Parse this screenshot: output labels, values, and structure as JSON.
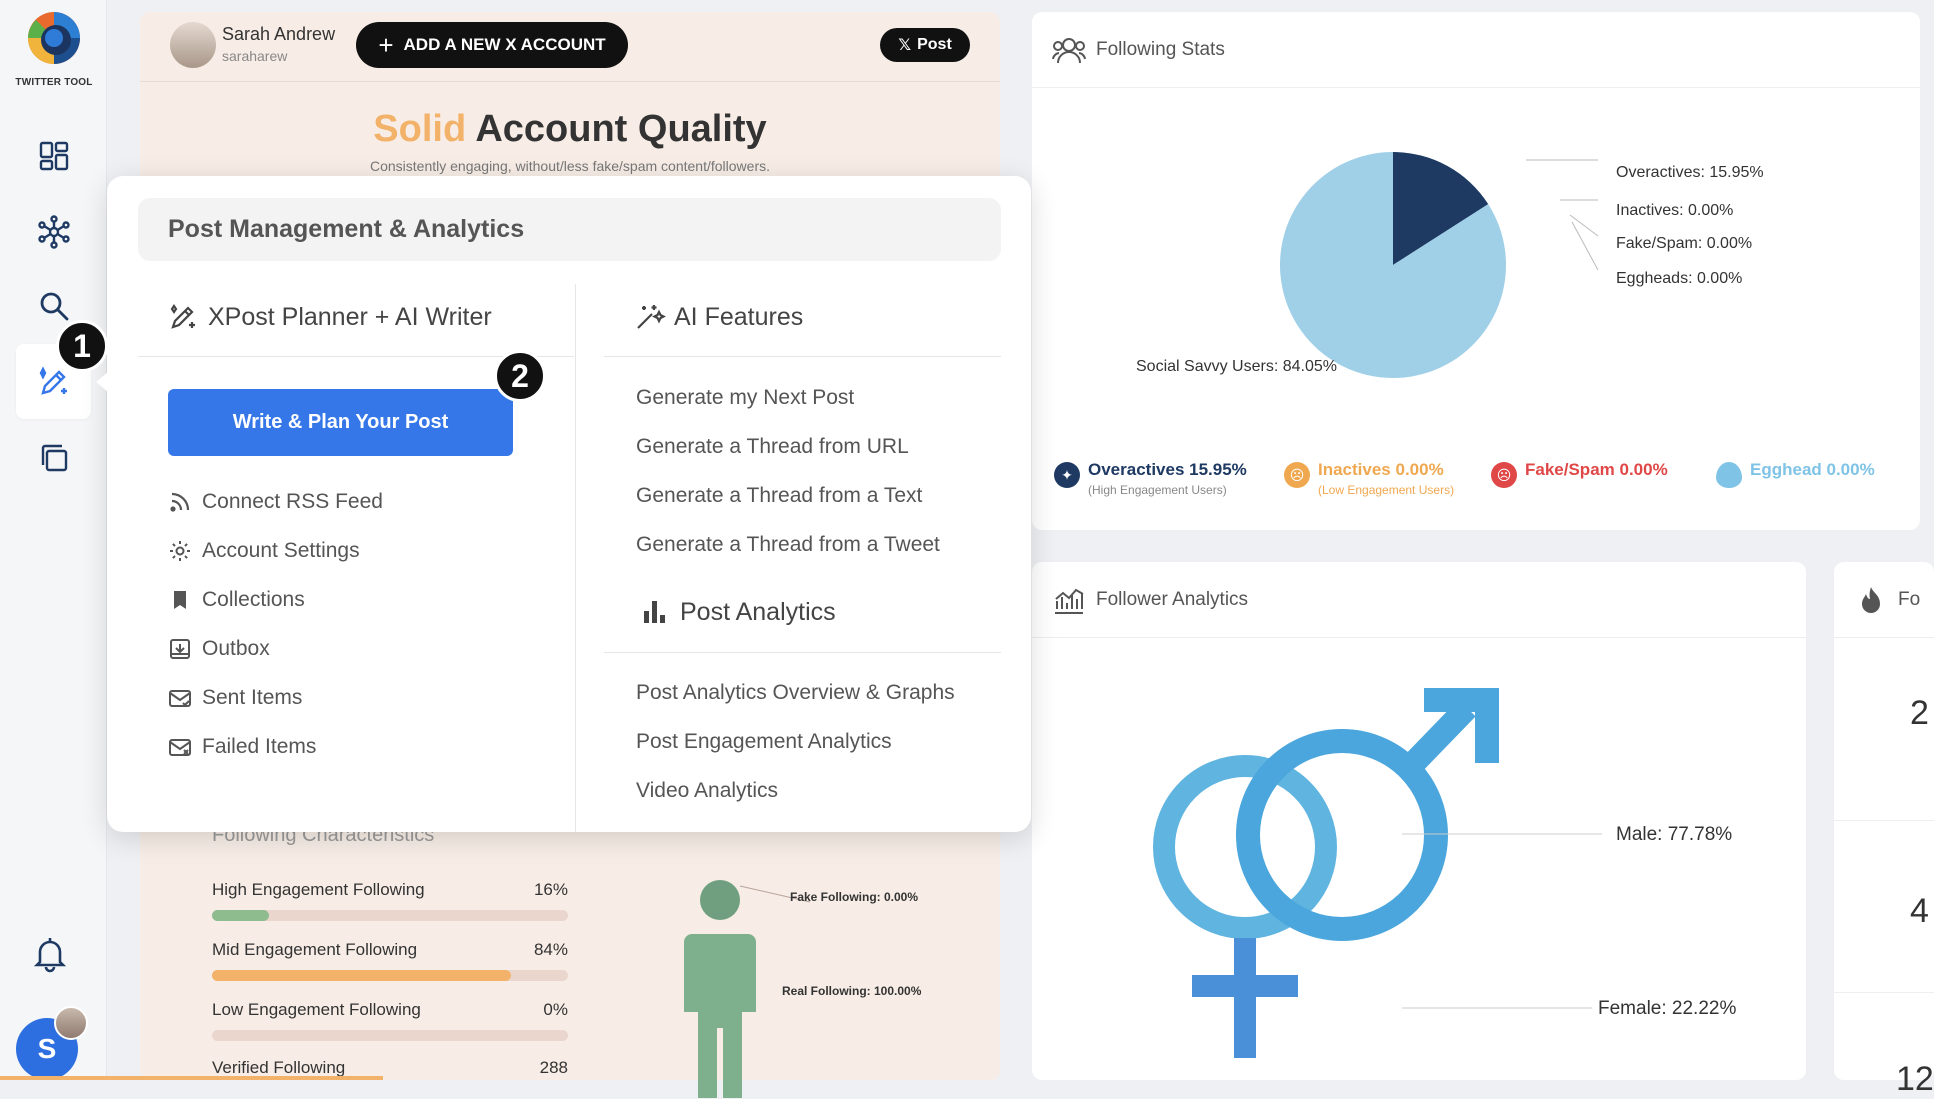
{
  "app": {
    "logo_text": "TWITTER TOOL"
  },
  "sidebar": {
    "items": [
      {
        "name": "dashboard"
      },
      {
        "name": "network"
      },
      {
        "name": "search"
      },
      {
        "name": "post-planner"
      },
      {
        "name": "collections"
      }
    ],
    "badges": {
      "step1": "1",
      "step2": "2"
    },
    "user_initial": "S"
  },
  "account": {
    "name": "Sarah Andrew",
    "handle": "saraharew",
    "add_account_label": "ADD A NEW X ACCOUNT",
    "post_label": "Post",
    "x_glyph": "𝕏"
  },
  "quality": {
    "title_accent": "Solid",
    "title_main": "Account Quality",
    "subtitle": "Consistently engaging, without/less fake/spam content/followers."
  },
  "following_characteristics": {
    "title": "Following Characteristics",
    "rows": [
      {
        "label": "High Engagement Following",
        "value": "16%",
        "fill": 16,
        "color": "#8fbc8f"
      },
      {
        "label": "Mid Engagement Following",
        "value": "84%",
        "fill": 84,
        "color": "#f2b26a"
      },
      {
        "label": "Low Engagement Following",
        "value": "0%",
        "fill": 0,
        "color": "#e0a0a0"
      },
      {
        "label": "Verified Following",
        "value": "288",
        "fill": 0,
        "color": "#999999"
      }
    ],
    "fake_label": "Fake Following: 0.00%",
    "real_label": "Real Following: 100.00%"
  },
  "menu": {
    "header": "Post Management & Analytics",
    "planner": {
      "title": "XPost Planner + AI Writer",
      "cta": "Write & Plan Your Post",
      "links": [
        {
          "label": "Connect RSS Feed",
          "icon": "rss-icon"
        },
        {
          "label": "Account Settings",
          "icon": "gear-icon"
        },
        {
          "label": "Collections",
          "icon": "bookmark-icon"
        },
        {
          "label": "Outbox",
          "icon": "outbox-icon"
        },
        {
          "label": "Sent Items",
          "icon": "sent-icon"
        },
        {
          "label": "Failed Items",
          "icon": "failed-icon"
        }
      ]
    },
    "ai": {
      "title": "AI Features",
      "links": [
        "Generate my Next Post",
        "Generate a Thread from URL",
        "Generate a Thread from a Text",
        "Generate a Thread from a Tweet"
      ]
    },
    "analytics": {
      "title": "Post Analytics",
      "links": [
        "Post Analytics Overview & Graphs",
        "Post Engagement Analytics",
        "Video Analytics"
      ]
    }
  },
  "following_stats": {
    "title": "Following Stats",
    "labels": {
      "overactives": "Overactives: 15.95%",
      "inactives": "Inactives: 0.00%",
      "fake": "Fake/Spam: 0.00%",
      "eggheads": "Eggheads: 0.00%",
      "social": "Social Savvy Users: 84.05%"
    },
    "legend": [
      {
        "label": "Overactives 15.95%",
        "sub": "(High Engagement Users)",
        "color": "#1e3a63"
      },
      {
        "label": "Inactives 0.00%",
        "sub": "(Low Engagement Users)",
        "color": "#f0a850"
      },
      {
        "label": "Fake/Spam 0.00%",
        "sub": "",
        "color": "#e04848"
      },
      {
        "label": "Egghead 0.00%",
        "sub": "",
        "color": "#7fc3e6"
      }
    ]
  },
  "chart_data": {
    "type": "pie",
    "title": "Following Stats",
    "categories": [
      "Overactives",
      "Inactives",
      "Fake/Spam",
      "Eggheads",
      "Social Savvy Users"
    ],
    "values": [
      15.95,
      0.0,
      0.0,
      0.0,
      84.05
    ],
    "colors": [
      "#1e3a63",
      "#f0a850",
      "#e04848",
      "#7fc3e6",
      "#9fd0e8"
    ]
  },
  "follower_analytics": {
    "title": "Follower Analytics",
    "male": "Male: 77.78%",
    "female": "Female: 22.22%"
  },
  "partial_card": {
    "title": "Fo",
    "num1": "2",
    "num2": "4",
    "num3": "12"
  }
}
